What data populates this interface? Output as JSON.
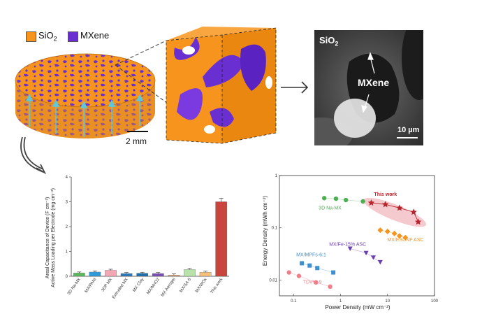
{
  "schematic": {
    "legend": [
      {
        "label_main": "SiO",
        "label_sub": "2",
        "color": "#f7941d"
      },
      {
        "label_main": "MXene",
        "label_sub": "",
        "color": "#6a2fd1"
      }
    ],
    "scale_bar_label": "2 mm"
  },
  "sem": {
    "label_main": "SiO",
    "label_sub": "2",
    "mxene_label": "MXene",
    "scale_label": "10 µm"
  },
  "chart_data": [
    {
      "type": "bar",
      "ylabel": "Areal Capacitance of Device (F cm⁻²)",
      "ylabel2": "Active Mass Loading per Electrode (mg cm⁻²)",
      "ylim": [
        0,
        4
      ],
      "yticks": [
        "0",
        "1",
        "2",
        "3",
        "4"
      ],
      "categories": [
        "3D Na-MX",
        "MX/PANI",
        "3DP MX",
        "Extruded MX",
        "MX Clay",
        "MX/MnO2",
        "MX Aerogel",
        "MX/SA-5",
        "MX/WOx",
        "This work"
      ],
      "values": [
        0.13,
        0.17,
        0.24,
        0.11,
        0.12,
        0.11,
        0.05,
        0.27,
        0.16,
        3.0
      ],
      "colors": [
        "#5cb85c",
        "#2e9ad8",
        "#f4a6b4",
        "#2b78b8",
        "#1f6fa8",
        "#7a4fb5",
        "#e0a070",
        "#b7e3a8",
        "#f5c07a",
        "#c9443d"
      ]
    },
    {
      "type": "scatter",
      "xlabel": "Power Density (mW cm⁻²)",
      "ylabel": "Energy Density (mWh cm⁻²)",
      "xscale": "log",
      "yscale": "log",
      "xlim": [
        0.05,
        100
      ],
      "ylim": [
        0.005,
        1
      ],
      "xticks": [
        "0.1",
        "1",
        "10",
        "100"
      ],
      "yticks": [
        "0.01",
        "0.1",
        "1"
      ],
      "series": [
        {
          "name": "This work",
          "color": "#b8242c",
          "marker": "star",
          "x": [
            4.5,
            9,
            18,
            36,
            45
          ],
          "y": [
            0.3,
            0.28,
            0.24,
            0.2,
            0.13
          ]
        },
        {
          "name": "3D Na-MX",
          "color": "#4caf50",
          "marker": "circle",
          "x": [
            0.45,
            0.8,
            1.3,
            3
          ],
          "y": [
            0.37,
            0.36,
            0.34,
            0.32
          ]
        },
        {
          "name": "MX/ESCNF ASC",
          "color": "#f7941d",
          "marker": "diamond",
          "x": [
            7,
            10,
            14,
            18,
            24
          ],
          "y": [
            0.09,
            0.085,
            0.078,
            0.07,
            0.065
          ]
        },
        {
          "name": "MX/Fe-15% ASC",
          "color": "#6a3fb0",
          "marker": "triangle-down",
          "x": [
            1.6,
            3.5,
            5,
            7
          ],
          "y": [
            0.04,
            0.033,
            0.027,
            0.022
          ]
        },
        {
          "name": "MX/MPFs-6:1",
          "color": "#3d8fd1",
          "marker": "square",
          "x": [
            0.15,
            0.22,
            0.32,
            0.7
          ],
          "y": [
            0.021,
            0.019,
            0.017,
            0.014
          ]
        },
        {
          "name": "TDVW-9",
          "color": "#f07f8a",
          "marker": "circle",
          "x": [
            0.08,
            0.13,
            0.3,
            0.6
          ],
          "y": [
            0.014,
            0.012,
            0.009,
            0.0075
          ]
        }
      ]
    }
  ]
}
